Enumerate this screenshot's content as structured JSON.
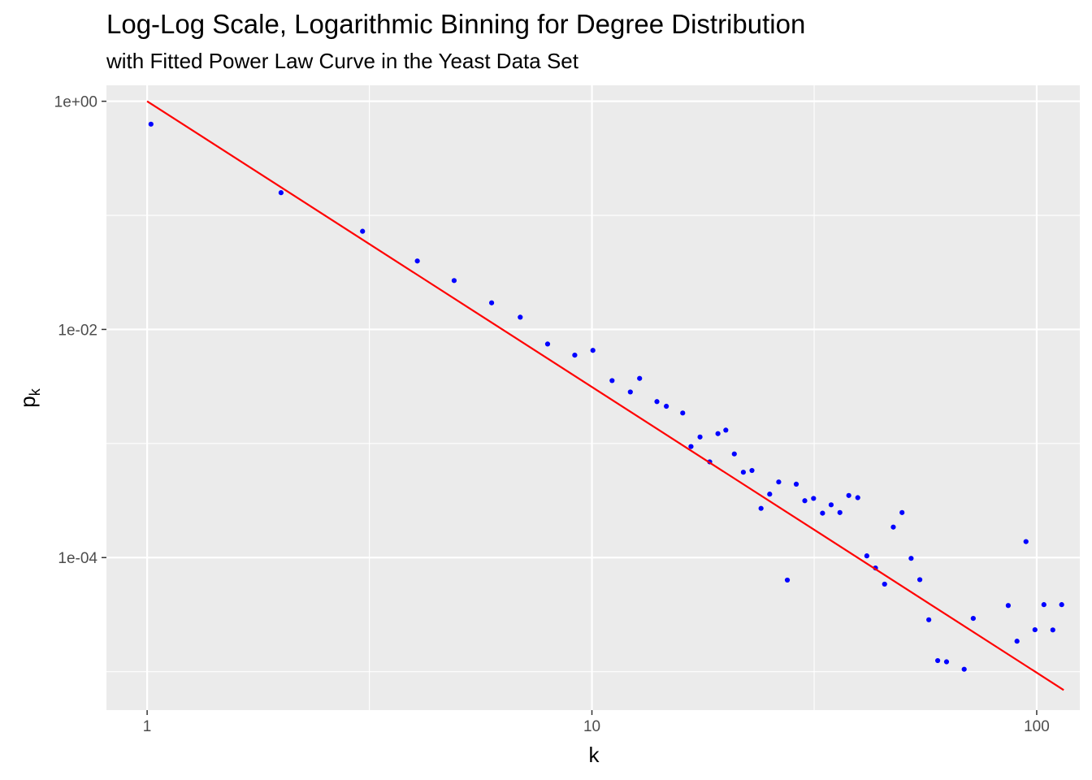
{
  "chart_data": {
    "type": "scatter",
    "title": "Log-Log Scale, Logarithmic Binning for Degree Distribution",
    "subtitle": "with Fitted Power Law Curve in the Yeast Data Set",
    "xlabel": "k",
    "ylabel": "p",
    "ylabel_subscript": "k",
    "x_scale": "log10",
    "y_scale": "log10",
    "xlim": [
      0.81,
      125
    ],
    "ylim": [
      4.6e-06,
      1.38
    ],
    "x_ticks": [
      {
        "value": 1,
        "label": "1"
      },
      {
        "value": 10,
        "label": "10"
      },
      {
        "value": 100,
        "label": "100"
      }
    ],
    "y_ticks": [
      {
        "value": 1,
        "label": "1e+00"
      },
      {
        "value": 0.01,
        "label": "1e-02"
      },
      {
        "value": 0.0001,
        "label": "1e-04"
      }
    ],
    "x_minor_gridlines": [
      3.16,
      31.6
    ],
    "y_minor_gridlines": [
      0.1,
      0.001,
      1e-05
    ],
    "grid": true,
    "legend": "none",
    "colors": {
      "panel": "#ebebeb",
      "grid": "#ffffff",
      "points": "#0000ff",
      "fit_line": "#ff0000",
      "tick_mark": "#333333"
    },
    "series": [
      {
        "type": "points",
        "x": [
          1.02,
          2.0,
          3.05,
          4.05,
          4.9,
          5.95,
          6.9,
          7.95,
          9.15,
          10.05,
          11.1,
          12.2,
          12.8,
          14.0,
          14.7,
          16.0,
          16.7,
          17.5,
          18.4,
          19.2,
          20.0,
          20.9,
          21.9,
          22.9,
          24.0,
          25.1,
          26.3,
          27.5,
          28.8,
          30.1,
          31.5,
          33.0,
          34.5,
          36.1,
          37.8,
          39.6,
          41.5,
          43.4,
          45.5,
          47.6,
          49.8,
          52.2,
          54.6,
          57.2,
          59.9,
          62.7,
          68.7,
          72.0,
          86.3,
          90.3,
          94.6,
          99.1,
          103.8,
          108.7,
          113.8
        ],
        "y": [
          0.63,
          0.158,
          0.0725,
          0.0398,
          0.0268,
          0.0171,
          0.0128,
          0.00745,
          0.00595,
          0.00655,
          0.00356,
          0.00283,
          0.00372,
          0.00233,
          0.00212,
          0.00185,
          0.00094,
          0.00114,
          0.00069,
          0.00122,
          0.00131,
          0.00081,
          0.00056,
          0.00058,
          0.00027,
          0.00036,
          0.00046,
          6.35e-05,
          0.00044,
          0.000315,
          0.00033,
          0.000245,
          0.00029,
          0.000248,
          0.00035,
          0.000335,
          0.0001035,
          8.1e-05,
          5.85e-05,
          0.000185,
          0.000248,
          9.85e-05,
          6.4e-05,
          2.85e-05,
          1.25e-05,
          1.22e-05,
          1.05e-05,
          2.93e-05,
          3.8e-05,
          1.85e-05,
          0.000138,
          2.33e-05,
          3.87e-05,
          2.32e-05,
          3.87e-05
        ]
      },
      {
        "type": "line",
        "name": "",
        "x": [
          1.0,
          115.0
        ],
        "y": [
          1.0,
          6.9e-06
        ]
      }
    ]
  }
}
